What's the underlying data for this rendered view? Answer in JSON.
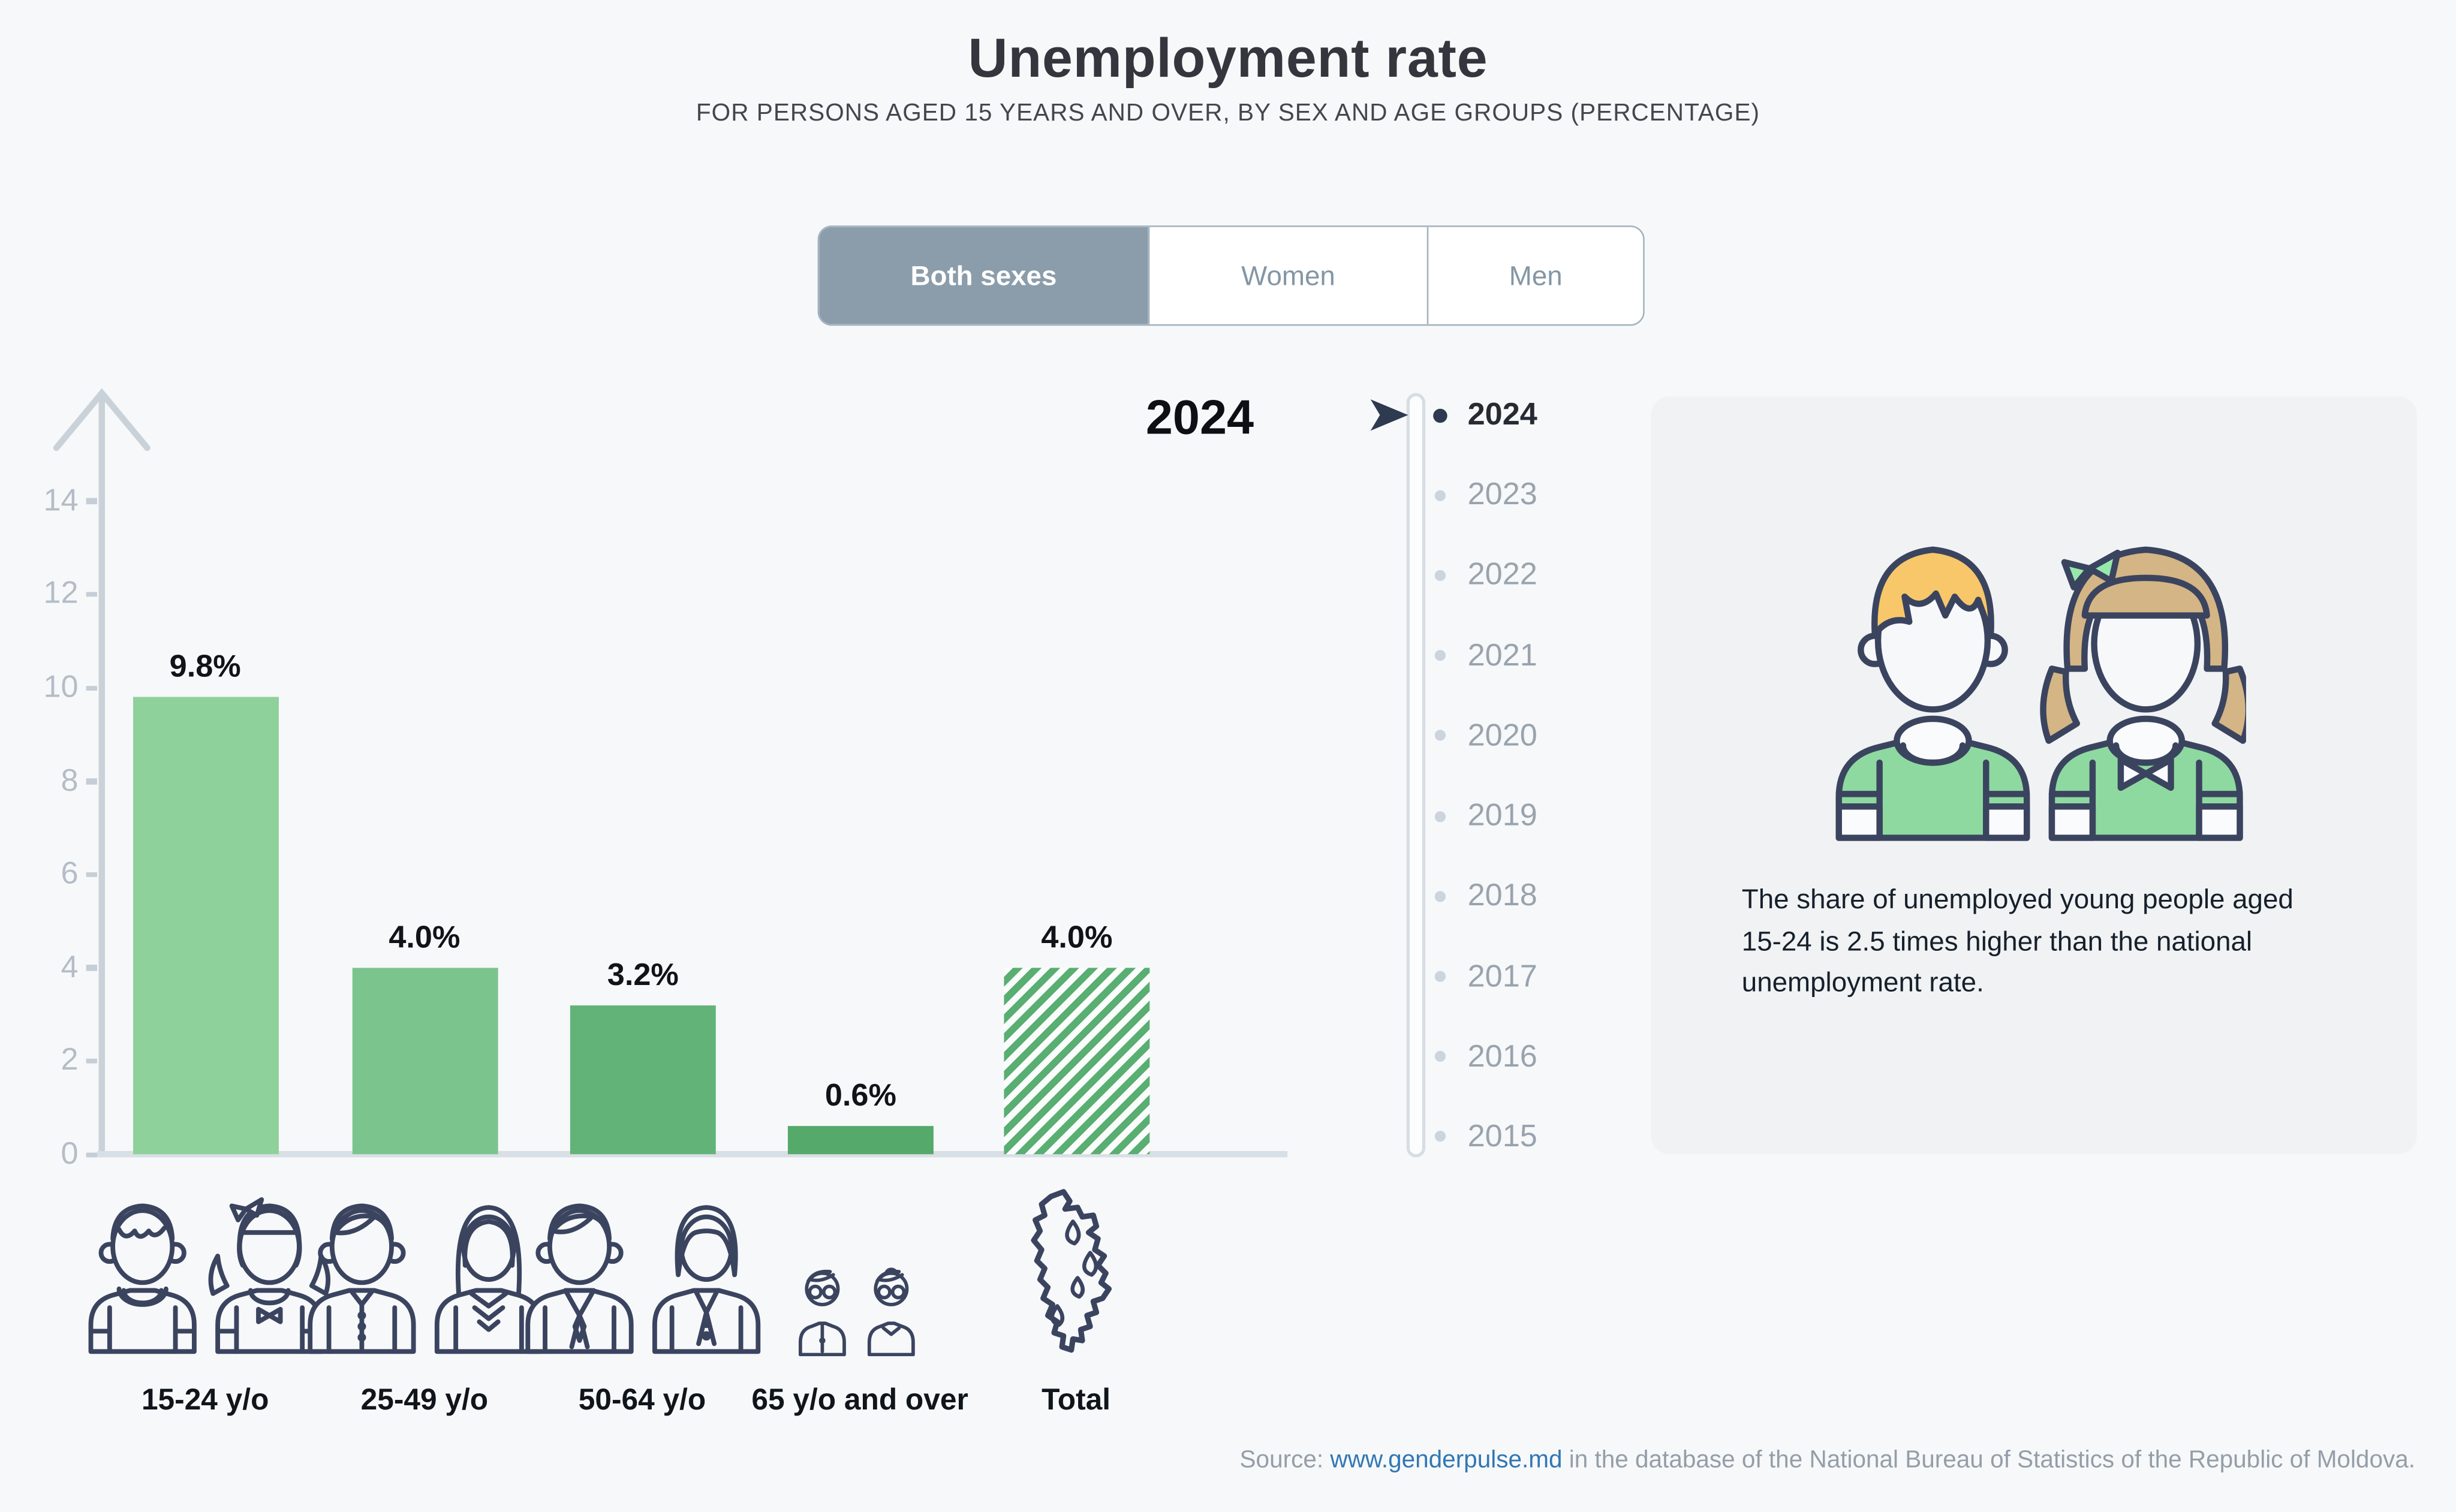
{
  "page": {
    "background": "#f7f8fa"
  },
  "header": {
    "title": "Unemployment rate",
    "subtitle": "FOR PERSONS AGED 15 YEARS AND OVER, BY SEX AND AGE GROUPS (PERCENTAGE)"
  },
  "tabs": {
    "items": [
      {
        "label": "Both sexes",
        "active": true
      },
      {
        "label": "Women",
        "active": false
      },
      {
        "label": "Men",
        "active": false
      }
    ]
  },
  "chart_data": {
    "type": "bar",
    "title": "Unemployment rate",
    "subtitle": "FOR PERSONS AGED 15 YEARS AND OVER, BY SEX AND AGE GROUPS (PERCENTAGE)",
    "year_label": "2024",
    "categories": [
      "15-24 y/o",
      "25-49 y/o",
      "50-64 y/o",
      "65 y/o and over",
      "Total"
    ],
    "values": [
      9.8,
      4.0,
      3.2,
      0.6,
      4.0
    ],
    "value_labels": [
      "9.8%",
      "4.0%",
      "3.2%",
      "0.6%",
      "4.0%"
    ],
    "bar_colors": [
      "#8fd19b",
      "#7cc48e",
      "#62b377",
      "#54a96b",
      "hatch"
    ],
    "hatch_stripe_color": "#59ae71",
    "ylim": [
      0,
      15.5
    ],
    "yticks": [
      0,
      2,
      4,
      6,
      8,
      10,
      12,
      14
    ],
    "grid": false,
    "legend_position": "none",
    "xlabel": "",
    "ylabel": ""
  },
  "timeline": {
    "years": [
      "2024",
      "2023",
      "2022",
      "2021",
      "2020",
      "2019",
      "2018",
      "2017",
      "2016",
      "2015"
    ],
    "selected": "2024"
  },
  "infocard": {
    "text": "The share of unemployed young people aged 15-24 is 2.5 times higher than the national unemployment rate."
  },
  "source": {
    "prefix": "Source: ",
    "link": "www.genderpulse.md",
    "suffix": " in the database of the National Bureau of Statistics of the Republic of Moldova."
  },
  "colors": {
    "tab_active_bg": "#8b9dab",
    "icon_outline": "#3b445f",
    "selected_year": "#2d3a50",
    "axis": "#c9d2d9",
    "boy_hair": "#f7c76a",
    "girl_hair": "#d4b585",
    "shirt_green": "#8ed9a0",
    "bow_green": "#96e8ab"
  }
}
